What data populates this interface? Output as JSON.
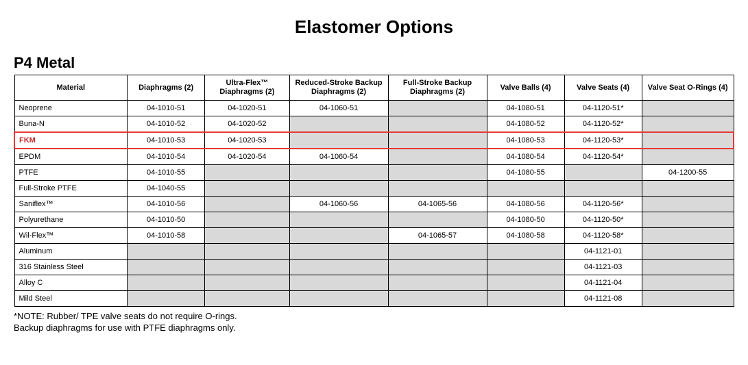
{
  "title": "Elastomer Options",
  "subtitle": "P4 Metal",
  "columns": [
    "Material",
    "Diaphragms (2)",
    "Ultra-Flex™ Diaphragms (2)",
    "Reduced-Stroke Backup Diaphragms (2)",
    "Full-Stroke Backup Diaphragms (2)",
    "Valve Balls (4)",
    "Valve Seats (4)",
    "Valve Seat O-Rings (4)"
  ],
  "col_widths_pct": [
    16,
    11,
    12,
    14,
    14,
    11,
    11,
    13
  ],
  "highlight_row_index": 2,
  "empty_bg": "#d9d9d9",
  "highlight_color": "#e53935",
  "rows": [
    {
      "material": "Neoprene",
      "cells": [
        "04-1010-51",
        "04-1020-51",
        "04-1060-51",
        "",
        "04-1080-51",
        "04-1120-51*",
        ""
      ]
    },
    {
      "material": "Buna-N",
      "cells": [
        "04-1010-52",
        "04-1020-52",
        "",
        "",
        "04-1080-52",
        "04-1120-52*",
        ""
      ]
    },
    {
      "material": "FKM",
      "cells": [
        "04-1010-53",
        "04-1020-53",
        "",
        "",
        "04-1080-53",
        "04-1120-53*",
        ""
      ]
    },
    {
      "material": "EPDM",
      "cells": [
        "04-1010-54",
        "04-1020-54",
        "04-1060-54",
        "",
        "04-1080-54",
        "04-1120-54*",
        ""
      ]
    },
    {
      "material": "PTFE",
      "cells": [
        "04-1010-55",
        "",
        "",
        "",
        "04-1080-55",
        "",
        "04-1200-55"
      ]
    },
    {
      "material": "Full-Stroke PTFE",
      "cells": [
        "04-1040-55",
        "",
        "",
        "",
        "",
        "",
        ""
      ]
    },
    {
      "material": "Saniflex™",
      "cells": [
        "04-1010-56",
        "",
        "04-1060-56",
        "04-1065-56",
        "04-1080-56",
        "04-1120-56*",
        ""
      ]
    },
    {
      "material": "Polyurethane",
      "cells": [
        "04-1010-50",
        "",
        "",
        "",
        "04-1080-50",
        "04-1120-50*",
        ""
      ]
    },
    {
      "material": "Wil-Flex™",
      "cells": [
        "04-1010-58",
        "",
        "",
        "04-1065-57",
        "04-1080-58",
        "04-1120-58*",
        ""
      ]
    },
    {
      "material": "Aluminum",
      "cells": [
        "",
        "",
        "",
        "",
        "",
        "04-1121-01",
        ""
      ]
    },
    {
      "material": "316 Stainless Steel",
      "cells": [
        "",
        "",
        "",
        "",
        "",
        "04-1121-03",
        ""
      ]
    },
    {
      "material": "Alloy C",
      "cells": [
        "",
        "",
        "",
        "",
        "",
        "04-1121-04",
        ""
      ]
    },
    {
      "material": "Mild Steel",
      "cells": [
        "",
        "",
        "",
        "",
        "",
        "04-1121-08",
        ""
      ]
    }
  ],
  "notes": [
    "*NOTE: Rubber/ TPE valve seats do not require O-rings.",
    "Backup diaphragms for use with PTFE diaphragms only."
  ]
}
